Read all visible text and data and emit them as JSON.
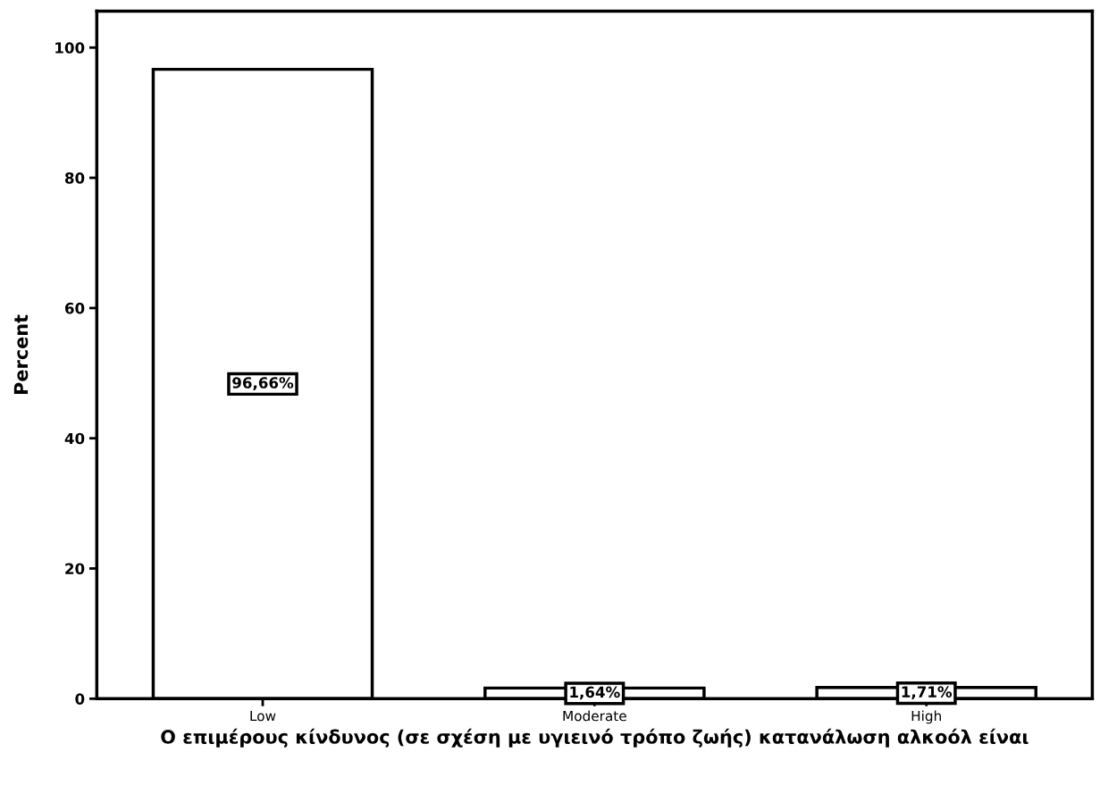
{
  "chart_data": {
    "type": "bar",
    "xlabel": "Ο επιμέρους κίνδυνος (σε σχέση με υγιεινό τρόπο ζωής) κατανάλωση αλκοόλ είναι",
    "ylabel": "Percent",
    "categories": [
      "Low",
      "Moderate",
      "High"
    ],
    "values": [
      96.66,
      1.64,
      1.71
    ],
    "value_labels": [
      "96,66%",
      "1,64%",
      "1,71%"
    ],
    "color": "#ffffff",
    "ylim": [
      0,
      105.6
    ],
    "yticks": [
      0,
      20,
      40,
      60,
      80,
      100
    ],
    "grid": false,
    "legend": false
  }
}
